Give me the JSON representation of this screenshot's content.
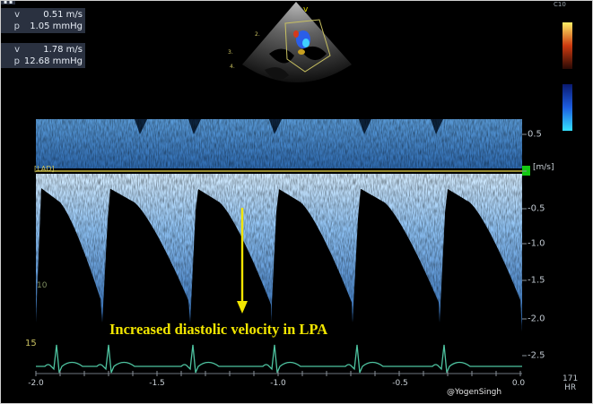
{
  "measurements": [
    {
      "label": "v",
      "value": "0.51 m/s"
    },
    {
      "label": "p",
      "value": "1.05 mmHg"
    },
    {
      "label": "v",
      "value": "1.78 m/s"
    },
    {
      "label": "p",
      "value": "12.68 mmHg"
    }
  ],
  "velocity_scale": {
    "unit": "[m/s]",
    "ticks": [
      "0.5",
      "-0.5",
      "-1.0",
      "-1.5",
      "-2.0",
      "-2.5"
    ]
  },
  "time_axis": {
    "ticks": [
      "-2.0",
      "-1.5",
      "-1.0",
      "-0.5",
      "0.0"
    ]
  },
  "baseline_tag": "[LAD]",
  "depth_markers": [
    "15",
    "10"
  ],
  "annotation": "Increased diastolic velocity in LPA",
  "credit": "@YogenSingh",
  "heart_rate": {
    "value": "171",
    "unit": "HR"
  },
  "color_bar": {
    "label": "C10"
  },
  "colors": {
    "background": "#000000",
    "doppler_spectrum": "#8fc3f5",
    "baseline": "#c8b840",
    "ecg_trace": "#4ec3a0",
    "annotation_text": "#f2e600",
    "arrow": "#f2e600"
  }
}
